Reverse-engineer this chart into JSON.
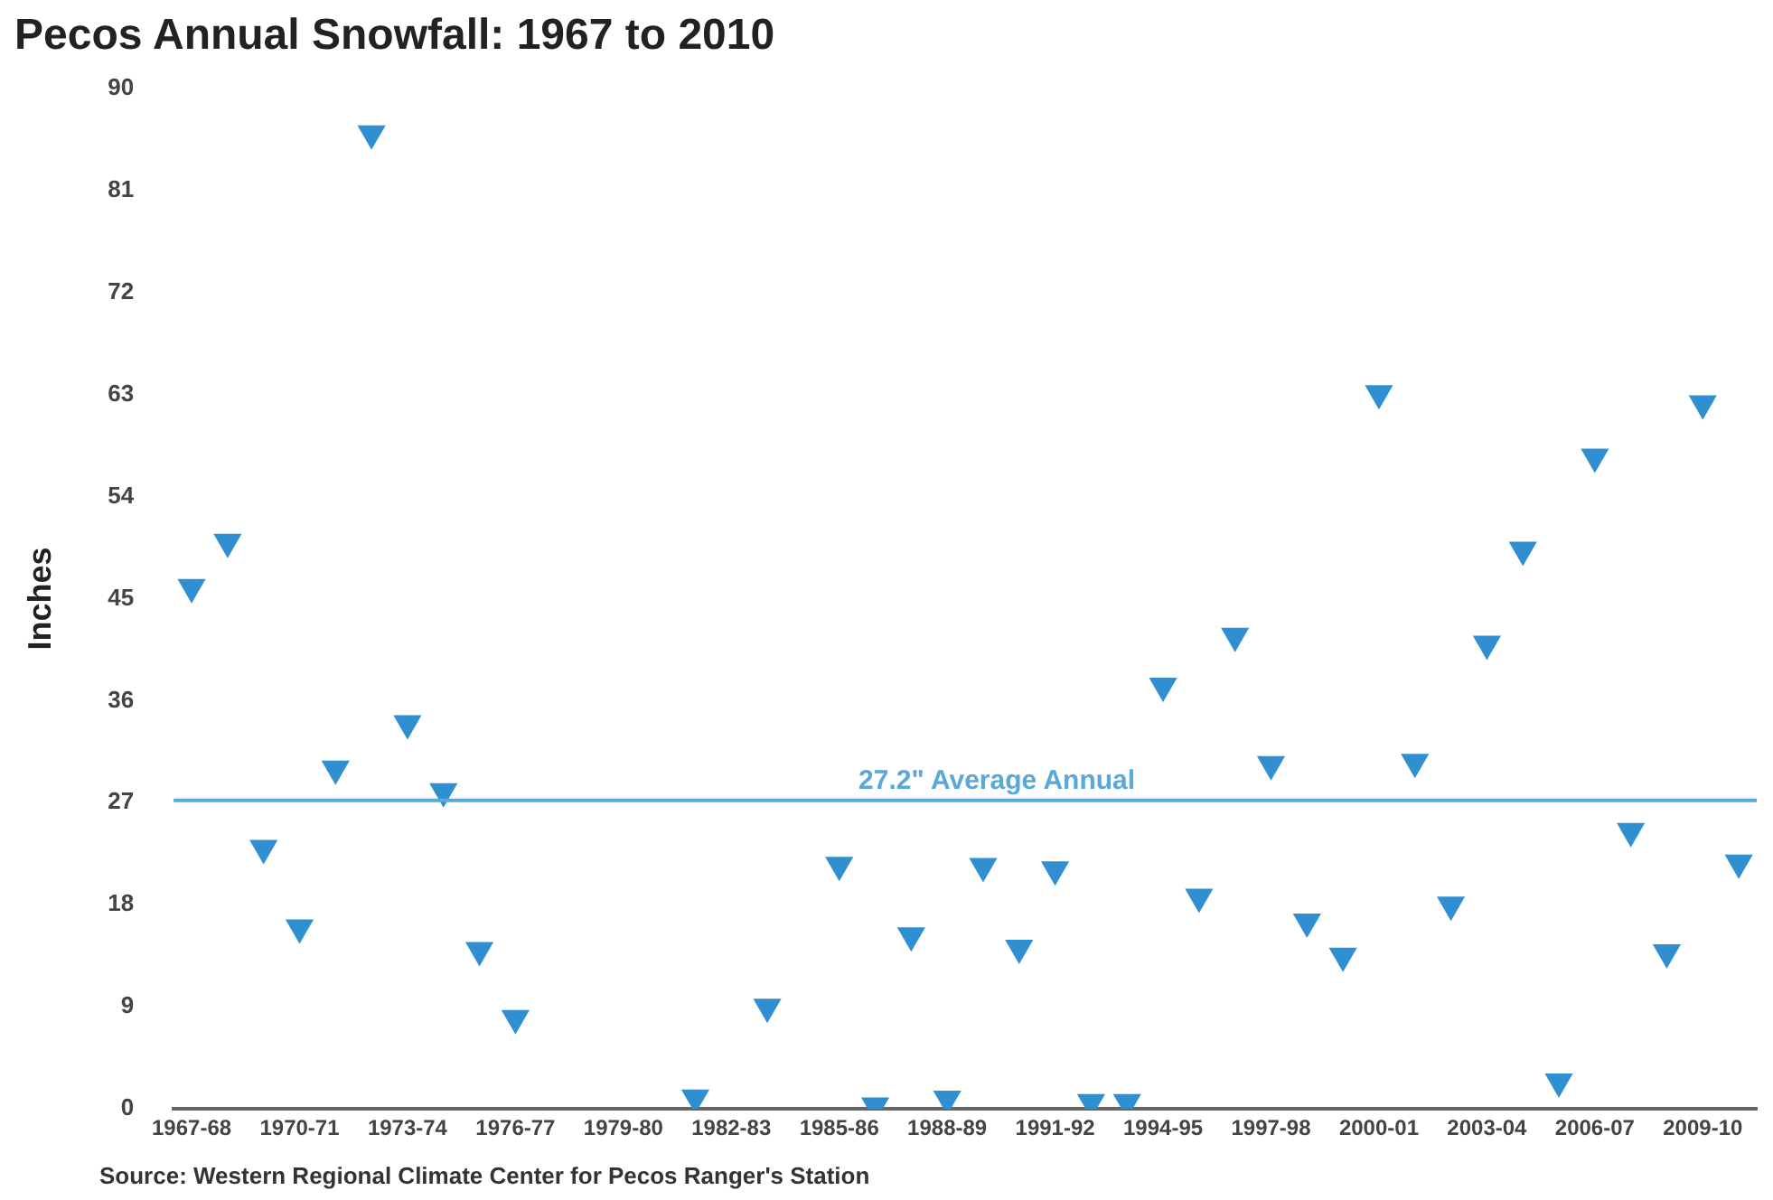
{
  "chart_data": {
    "type": "scatter",
    "title": "Pecos Annual Snowfall: 1967 to 2010",
    "ylabel": "Inches",
    "categories": [
      "1967-68",
      null,
      null,
      "1970-71",
      null,
      null,
      "1973-74",
      null,
      null,
      "1976-77",
      null,
      null,
      "1979-80",
      null,
      null,
      "1982-83",
      null,
      null,
      "1985-86",
      null,
      null,
      "1988-89",
      null,
      null,
      "1991-92",
      null,
      null,
      "1994-95",
      null,
      null,
      "1997-98",
      null,
      null,
      "2000-01",
      null,
      null,
      "2003-04",
      null,
      null,
      "2006-07",
      null,
      null,
      "2009-10",
      null
    ],
    "series": [
      {
        "color": "#2f8fd0",
        "values": [
          46,
          50,
          23,
          16,
          30,
          86,
          34,
          28,
          14,
          8,
          null,
          null,
          null,
          null,
          1,
          null,
          9,
          null,
          21.5,
          0.3,
          15.3,
          0.9,
          21.4,
          14.2,
          21.1,
          0.6,
          0.6,
          37.3,
          18.7,
          41.7,
          30.4,
          16.5,
          13.5,
          63.1,
          30.6,
          18,
          41,
          49.3,
          2.4,
          57.5,
          24.5,
          13.8,
          62.2,
          21.7
        ]
      }
    ],
    "ylim": [
      0,
      90
    ],
    "yticks": [
      0,
      9,
      18,
      27,
      36,
      45,
      54,
      63,
      72,
      81,
      90
    ],
    "ref_lines": [
      {
        "axis": "y",
        "value": 27.2,
        "label": "27.2\" Average Annual",
        "color": "#5aa7d9"
      }
    ],
    "marker": "triangle",
    "grid": false,
    "legend": false,
    "annotations": [
      "Source: Western Regional Climate Center for Pecos Ranger's Station"
    ]
  }
}
